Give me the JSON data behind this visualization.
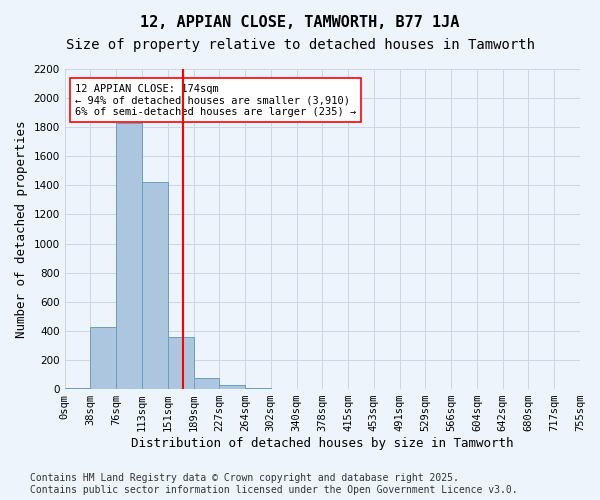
{
  "title": "12, APPIAN CLOSE, TAMWORTH, B77 1JA",
  "subtitle": "Size of property relative to detached houses in Tamworth",
  "xlabel": "Distribution of detached houses by size in Tamworth",
  "ylabel": "Number of detached properties",
  "footer_line1": "Contains HM Land Registry data © Crown copyright and database right 2025.",
  "footer_line2": "Contains public sector information licensed under the Open Government Licence v3.0.",
  "bin_labels": [
    "0sqm",
    "38sqm",
    "76sqm",
    "113sqm",
    "151sqm",
    "189sqm",
    "227sqm",
    "264sqm",
    "302sqm",
    "340sqm",
    "378sqm",
    "415sqm",
    "453sqm",
    "491sqm",
    "529sqm",
    "566sqm",
    "604sqm",
    "642sqm",
    "680sqm",
    "717sqm",
    "755sqm"
  ],
  "bar_values": [
    10,
    430,
    1830,
    1420,
    360,
    75,
    25,
    5,
    0,
    0,
    0,
    0,
    0,
    0,
    0,
    0,
    0,
    0,
    0,
    0
  ],
  "bar_color": "#adc6e0",
  "bar_edge_color": "#6a9ec0",
  "bin_edges": [
    0,
    38,
    76,
    113,
    151,
    189,
    227,
    264,
    302,
    340,
    378,
    415,
    453,
    491,
    529,
    566,
    604,
    642,
    680,
    717,
    755
  ],
  "property_size": 174,
  "property_line_color": "red",
  "annotation_text": "12 APPIAN CLOSE: 174sqm\n← 94% of detached houses are smaller (3,910)\n6% of semi-detached houses are larger (235) →",
  "annotation_box_color": "white",
  "annotation_box_edge_color": "red",
  "ylim": [
    0,
    2200
  ],
  "yticks": [
    0,
    200,
    400,
    600,
    800,
    1000,
    1200,
    1400,
    1600,
    1800,
    2000,
    2200
  ],
  "grid_color": "#c8d8e8",
  "background_color": "#eef4fb",
  "title_fontsize": 11,
  "subtitle_fontsize": 10,
  "axis_label_fontsize": 9,
  "tick_fontsize": 7.5,
  "footer_fontsize": 7
}
